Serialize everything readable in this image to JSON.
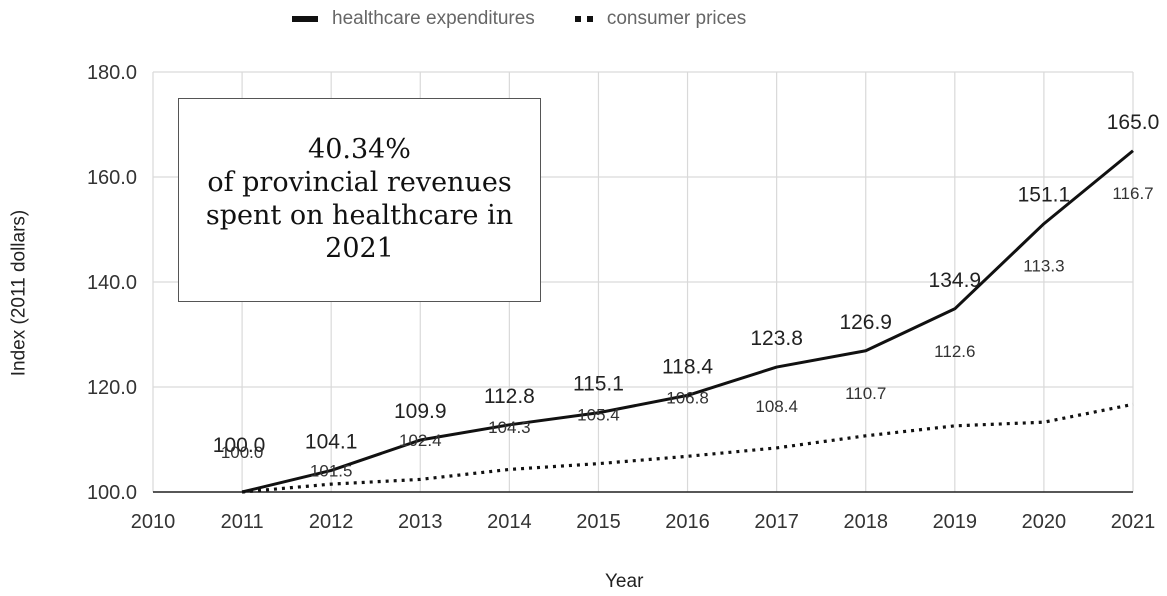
{
  "legend": {
    "series0": "healthcare expenditures",
    "series1": "consumer prices"
  },
  "annotation": {
    "line1": "40.34%",
    "line2": "of provincial revenues",
    "line3": "spent on healthcare in",
    "line4": "2021"
  },
  "chart_data": {
    "type": "line",
    "x": [
      2011,
      2012,
      2013,
      2014,
      2015,
      2016,
      2017,
      2018,
      2019,
      2020,
      2021
    ],
    "x_ticks": [
      "2010",
      "2011",
      "2012",
      "2013",
      "2014",
      "2015",
      "2016",
      "2017",
      "2018",
      "2019",
      "2020",
      "2021"
    ],
    "y_ticks": [
      "100.0",
      "120.0",
      "140.0",
      "160.0",
      "180.0"
    ],
    "xlim": [
      2010,
      2021
    ],
    "ylim": [
      100,
      180
    ],
    "xlabel": "Year",
    "ylabel": "Index (2011 dollars)",
    "grid": true,
    "legend_position": "top",
    "series": [
      {
        "name": "healthcare expenditures",
        "style": "solid",
        "color": "#111111",
        "values": [
          100.0,
          104.1,
          109.9,
          112.8,
          115.1,
          118.4,
          123.8,
          126.9,
          134.9,
          151.1,
          165.0
        ],
        "labels": [
          "100.0",
          "104.1",
          "109.9",
          "112.8",
          "115.1",
          "118.4",
          "123.8",
          "126.9",
          "134.9",
          "151.1",
          "165.0"
        ]
      },
      {
        "name": "consumer prices",
        "style": "dotted",
        "color": "#111111",
        "values": [
          100.0,
          101.5,
          102.4,
          104.3,
          105.4,
          106.8,
          108.4,
          110.7,
          112.6,
          113.3,
          116.7
        ],
        "labels": [
          "100.0",
          "101.5",
          "102.4",
          "104.3",
          "105.4",
          "106.8",
          "108.4",
          "110.7",
          "112.6",
          "113.3",
          "116.7"
        ]
      }
    ]
  }
}
